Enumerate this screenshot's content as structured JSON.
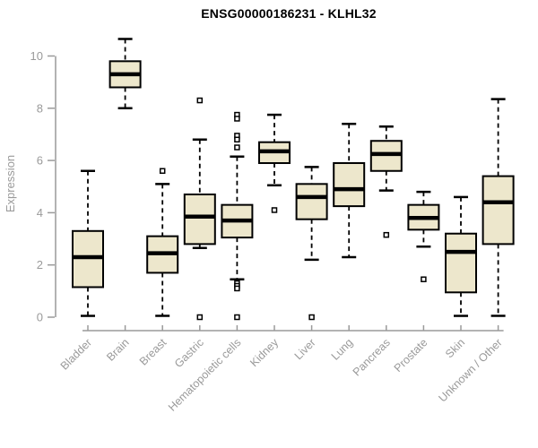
{
  "chart_data": {
    "type": "boxplot",
    "title": "ENSG00000186231 - KLHL32",
    "ylabel": "Expression",
    "xlabel": "",
    "ylim": [
      0,
      10
    ],
    "yticks": [
      0,
      2,
      4,
      6,
      8,
      10
    ],
    "grid": false,
    "legend": "none",
    "categories": [
      "Bladder",
      "Brain",
      "Breast",
      "Gastric",
      "Hematopoietic cells",
      "Kidney",
      "Liver",
      "Lung",
      "Pancreas",
      "Prostate",
      "Skin",
      "Unknown / Other"
    ],
    "boxes": [
      {
        "category": "Bladder",
        "whisker_low": 0.05,
        "q1": 1.15,
        "median": 2.3,
        "q3": 3.3,
        "whisker_high": 5.6,
        "outliers": []
      },
      {
        "category": "Brain",
        "whisker_low": 8.0,
        "q1": 8.8,
        "median": 9.3,
        "q3": 9.8,
        "whisker_high": 10.65,
        "outliers": []
      },
      {
        "category": "Breast",
        "whisker_low": 0.05,
        "q1": 1.7,
        "median": 2.45,
        "q3": 3.1,
        "whisker_high": 5.1,
        "outliers": [
          5.6
        ]
      },
      {
        "category": "Gastric",
        "whisker_low": 2.65,
        "q1": 2.8,
        "median": 3.85,
        "q3": 4.7,
        "whisker_high": 6.8,
        "outliers": [
          8.3,
          0.0
        ]
      },
      {
        "category": "Hematopoietic cells",
        "whisker_low": 1.45,
        "q1": 3.05,
        "median": 3.7,
        "q3": 4.3,
        "whisker_high": 6.15,
        "outliers": [
          7.75,
          7.6,
          6.95,
          6.8,
          6.5,
          1.3,
          1.2,
          1.1,
          0.0
        ]
      },
      {
        "category": "Kidney",
        "whisker_low": 5.05,
        "q1": 5.9,
        "median": 6.35,
        "q3": 6.7,
        "whisker_high": 7.75,
        "outliers": [
          4.1
        ]
      },
      {
        "category": "Liver",
        "whisker_low": 2.2,
        "q1": 3.75,
        "median": 4.6,
        "q3": 5.1,
        "whisker_high": 5.75,
        "outliers": [
          0.0
        ]
      },
      {
        "category": "Lung",
        "whisker_low": 2.3,
        "q1": 4.25,
        "median": 4.9,
        "q3": 5.9,
        "whisker_high": 7.4,
        "outliers": []
      },
      {
        "category": "Pancreas",
        "whisker_low": 4.85,
        "q1": 5.6,
        "median": 6.25,
        "q3": 6.75,
        "whisker_high": 7.3,
        "outliers": [
          3.15
        ]
      },
      {
        "category": "Prostate",
        "whisker_low": 2.7,
        "q1": 3.35,
        "median": 3.8,
        "q3": 4.3,
        "whisker_high": 4.8,
        "outliers": [
          1.45
        ]
      },
      {
        "category": "Skin",
        "whisker_low": 0.05,
        "q1": 0.95,
        "median": 2.5,
        "q3": 3.2,
        "whisker_high": 4.6,
        "outliers": []
      },
      {
        "category": "Unknown / Other",
        "whisker_low": 0.05,
        "q1": 2.8,
        "median": 4.4,
        "q3": 5.4,
        "whisker_high": 8.35,
        "outliers": []
      }
    ],
    "colors": {
      "box_fill": "#EDE7CC",
      "box_border": "#000000",
      "median": "#000000",
      "whisker": "#000000",
      "outlier_fill": "#FFFFFF",
      "axis": "#9A9A9A",
      "tick_label": "#9A9A9A",
      "title": "#000000"
    }
  }
}
